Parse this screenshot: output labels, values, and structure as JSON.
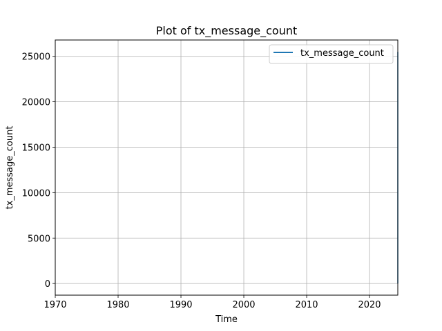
{
  "chart_data": {
    "type": "line",
    "title": "Plot of tx_message_count",
    "xlabel": "Time",
    "ylabel": "tx_message_count",
    "x_ticks": [
      "1970",
      "1980",
      "1990",
      "2000",
      "2010",
      "2020"
    ],
    "y_ticks": [
      "0",
      "5000",
      "10000",
      "15000",
      "20000",
      "25000"
    ],
    "xlim": [
      1970,
      2024.5
    ],
    "ylim": [
      -1280,
      26800
    ],
    "grid": true,
    "legend_position": "top-right",
    "series": [
      {
        "name": "tx_message_count",
        "color": "#1f77b4",
        "x": [
          2024.5,
          2024.5
        ],
        "y": [
          0,
          25500
        ]
      }
    ]
  }
}
